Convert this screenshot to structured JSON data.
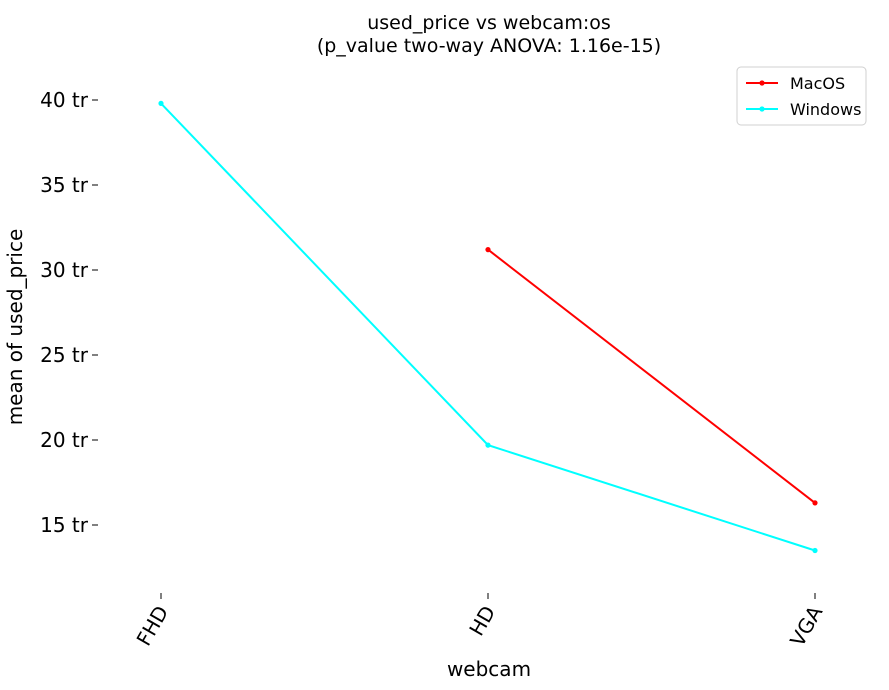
{
  "chart_data": {
    "type": "line",
    "title": "used_price vs webcam:os",
    "subtitle": "(p_value two-way ANOVA: 1.16e-15)",
    "xlabel": "webcam",
    "ylabel": "mean of used_price",
    "categories": [
      "FHD",
      "HD",
      "VGA"
    ],
    "y_ticks": [
      15,
      20,
      25,
      30,
      35,
      40
    ],
    "y_tick_suffix": " tr",
    "ylim": [
      11,
      41.5
    ],
    "grid": false,
    "legend_position": "top-right",
    "series": [
      {
        "name": "MacOS",
        "color": "#ff0000",
        "values": [
          null,
          31.2,
          16.3
        ]
      },
      {
        "name": "Windows",
        "color": "#00ffff",
        "values": [
          39.8,
          19.7,
          13.5
        ]
      }
    ]
  }
}
